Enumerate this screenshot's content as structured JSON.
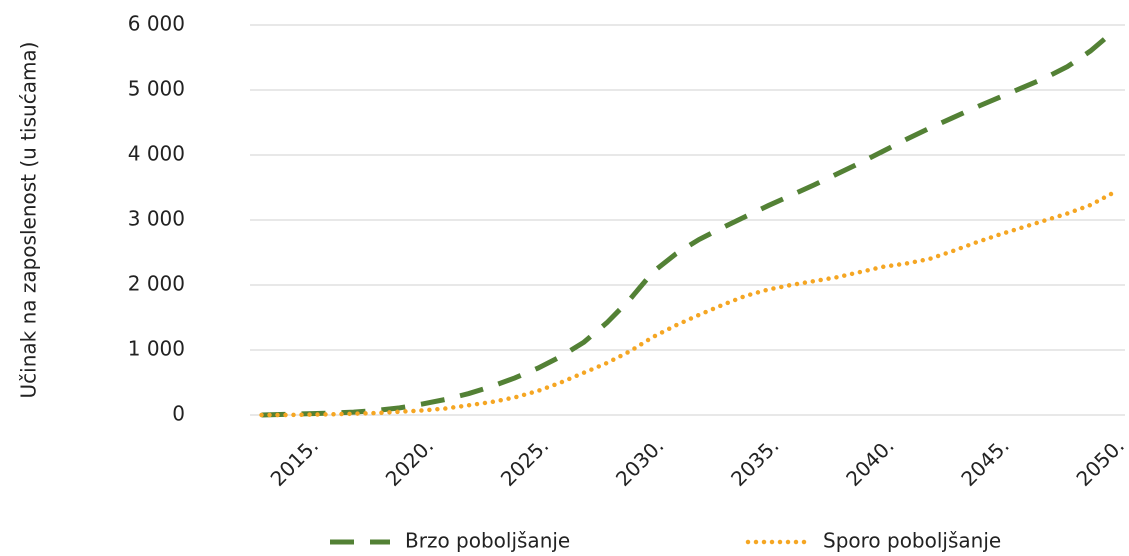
{
  "chart_data": {
    "type": "line",
    "y_label": "Učinak na zaposlenost (u tisućama)",
    "x": [
      2013,
      2014,
      2015,
      2016,
      2017,
      2018,
      2019,
      2020,
      2021,
      2022,
      2023,
      2024,
      2025,
      2026,
      2027,
      2028,
      2029,
      2030,
      2031,
      2032,
      2033,
      2034,
      2035,
      2036,
      2037,
      2038,
      2039,
      2040,
      2041,
      2042,
      2043,
      2044,
      2045,
      2046,
      2047,
      2048,
      2049,
      2050
    ],
    "series": [
      {
        "name": "Brzo poboljšanje",
        "color": "#538135",
        "style": "dashed",
        "values": [
          0,
          10,
          20,
          30,
          45,
          70,
          110,
          170,
          240,
          330,
          440,
          570,
          720,
          900,
          1120,
          1420,
          1780,
          2200,
          2480,
          2700,
          2880,
          3050,
          3220,
          3380,
          3540,
          3710,
          3880,
          4060,
          4240,
          4410,
          4570,
          4730,
          4880,
          5030,
          5180,
          5360,
          5600,
          5900
        ]
      },
      {
        "name": "Sporo poboljšanje",
        "color": "#f5a623",
        "style": "dotted",
        "values": [
          0,
          0,
          5,
          10,
          20,
          30,
          50,
          70,
          100,
          150,
          200,
          270,
          370,
          500,
          650,
          800,
          980,
          1200,
          1380,
          1540,
          1690,
          1830,
          1930,
          2000,
          2060,
          2120,
          2200,
          2280,
          2330,
          2400,
          2520,
          2650,
          2770,
          2880,
          2990,
          3100,
          3230,
          3420
        ]
      }
    ],
    "xlim": [
      2012.5,
      2050.5
    ],
    "xticks": [
      {
        "value": 2015,
        "label": "2015."
      },
      {
        "value": 2020,
        "label": "2020."
      },
      {
        "value": 2025,
        "label": "2025."
      },
      {
        "value": 2030,
        "label": "2030."
      },
      {
        "value": 2035,
        "label": "2035."
      },
      {
        "value": 2040,
        "label": "2040."
      },
      {
        "value": 2045,
        "label": "2045."
      },
      {
        "value": 2050,
        "label": "2050."
      }
    ],
    "ylim": [
      0,
      6000
    ],
    "yticks": [
      0,
      {
        "value": 1000,
        "label": "1 000"
      },
      {
        "value": 2000,
        "label": "2 000"
      },
      {
        "value": 3000,
        "label": "3 000"
      },
      {
        "value": 4000,
        "label": "4 000"
      },
      {
        "value": 5000,
        "label": "5 000"
      },
      {
        "value": 6000,
        "label": "6 000"
      }
    ],
    "grid": true,
    "legend": "bottom"
  }
}
